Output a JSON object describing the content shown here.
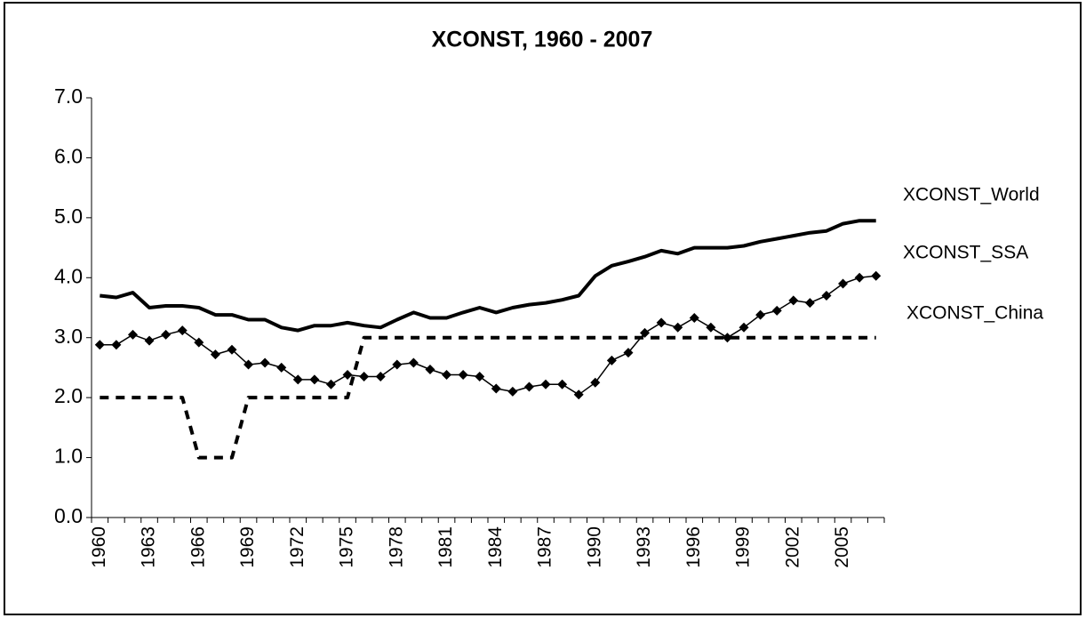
{
  "chart_data": {
    "type": "line",
    "title": "XCONST, 1960 - 2007",
    "categories": [
      1960,
      null,
      null,
      1963,
      null,
      null,
      1966,
      null,
      null,
      1969,
      null,
      null,
      1972,
      null,
      null,
      1975,
      null,
      null,
      1978,
      null,
      null,
      1981,
      null,
      null,
      1984,
      null,
      null,
      1987,
      null,
      null,
      1990,
      null,
      null,
      1993,
      null,
      null,
      1996,
      null,
      null,
      1999,
      null,
      null,
      2002,
      null,
      null,
      2005,
      null,
      null
    ],
    "series": [
      {
        "name": "XCONST_World",
        "color": "#000000",
        "style": "thick",
        "values": [
          3.7,
          3.67,
          3.75,
          3.5,
          3.53,
          3.53,
          3.5,
          3.38,
          3.38,
          3.3,
          3.3,
          3.17,
          3.12,
          3.2,
          3.2,
          3.25,
          3.2,
          3.17,
          3.3,
          3.42,
          3.33,
          3.33,
          3.42,
          3.5,
          3.42,
          3.5,
          3.55,
          3.58,
          3.63,
          3.7,
          4.03,
          4.2,
          4.27,
          4.35,
          4.45,
          4.4,
          4.5,
          4.5,
          4.5,
          4.53,
          4.6,
          4.65,
          4.7,
          4.75,
          4.78,
          4.9,
          4.95,
          4.95
        ]
      },
      {
        "name": "XCONST_SSA",
        "color": "#000000",
        "style": "markers",
        "values": [
          2.88,
          2.88,
          3.05,
          2.95,
          3.05,
          3.12,
          2.92,
          2.72,
          2.8,
          2.55,
          2.58,
          2.5,
          2.3,
          2.3,
          2.22,
          2.38,
          2.35,
          2.35,
          2.55,
          2.58,
          2.47,
          2.38,
          2.38,
          2.35,
          2.15,
          2.1,
          2.18,
          2.22,
          2.22,
          2.05,
          2.25,
          2.62,
          2.75,
          3.08,
          3.25,
          3.17,
          3.33,
          3.17,
          3.0,
          3.17,
          3.38,
          3.45,
          3.62,
          3.58,
          3.7,
          3.9,
          4.0,
          4.03
        ]
      },
      {
        "name": "XCONST_China",
        "color": "#000000",
        "style": "dashed",
        "values": [
          2,
          2,
          2,
          2,
          2,
          2,
          1,
          1,
          1,
          2,
          2,
          2,
          2,
          2,
          2,
          2,
          3,
          3,
          3,
          3,
          3,
          3,
          3,
          3,
          3,
          3,
          3,
          3,
          3,
          3,
          3,
          3,
          3,
          3,
          3,
          3,
          3,
          3,
          3,
          3,
          3,
          3,
          3,
          3,
          3,
          3,
          3,
          3
        ]
      }
    ],
    "ylim": [
      0,
      7
    ],
    "yticks": [
      {
        "value": 0,
        "label": "0.0"
      },
      {
        "value": 1,
        "label": "1.0"
      },
      {
        "value": 2,
        "label": "2.0"
      },
      {
        "value": 3,
        "label": "3.0"
      },
      {
        "value": 4,
        "label": "4.0"
      },
      {
        "value": 5,
        "label": "5.0"
      },
      {
        "value": 6,
        "label": "6.0"
      },
      {
        "value": 7,
        "label": "7.0"
      }
    ],
    "grid": false
  }
}
